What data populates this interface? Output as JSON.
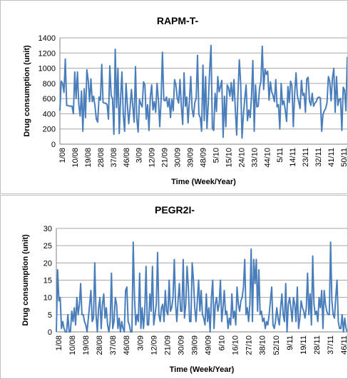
{
  "chart_data": [
    {
      "type": "line",
      "title": "RAPM-T-",
      "xlabel": "Time (Week/Year)",
      "ylabel": "Drug consumption (unit)",
      "ylim": [
        0,
        1400
      ],
      "yticks": [
        0,
        200,
        400,
        600,
        800,
        1000,
        1200,
        1400
      ],
      "grid": true,
      "line_color": "#4a7ebb",
      "x_tick_labels": [
        "1/08",
        "10/08",
        "19/08",
        "28/08",
        "37/08",
        "46/08",
        "3/09",
        "12/09",
        "21/09",
        "30/09",
        "39/09",
        "48/09",
        "5/10",
        "15/10",
        "24/10",
        "33/10",
        "44/10",
        "5/11",
        "14/11",
        "23/11",
        "32/11",
        "41/11",
        "50/11"
      ],
      "series": [
        {
          "values": [
            440,
            830,
            800,
            680,
            1120,
            510,
            510,
            500,
            500,
            500,
            400,
            950,
            600,
            950,
            520,
            370,
            700,
            170,
            730,
            350,
            980,
            840,
            560,
            860,
            560,
            630,
            500,
            330,
            290,
            620,
            580,
            1050,
            550,
            540,
            540,
            520,
            330,
            1030,
            640,
            600,
            130,
            1250,
            480,
            1000,
            140,
            600,
            950,
            380,
            170,
            800,
            520,
            270,
            480,
            720,
            500,
            290,
            1020,
            340,
            160,
            590,
            530,
            490,
            820,
            780,
            330,
            520,
            180,
            620,
            780,
            450,
            560,
            420,
            800,
            590,
            230,
            580,
            1210,
            580,
            570,
            620,
            490,
            600,
            350,
            590,
            440,
            850,
            780,
            600,
            540,
            850,
            500,
            260,
            940,
            500,
            620,
            280,
            570,
            890,
            460,
            360,
            550,
            600,
            1170,
            390,
            350,
            170,
            1040,
            310,
            890,
            210,
            540,
            970,
            1300,
            210,
            180,
            670,
            430,
            890,
            690,
            760,
            840,
            90,
            630,
            230,
            780,
            740,
            630,
            810,
            570,
            850,
            460,
            120,
            670,
            1110,
            800,
            80,
            390,
            590,
            780,
            310,
            450,
            350,
            630,
            1100,
            170,
            780,
            490,
            500,
            740,
            830,
            1290,
            720,
            990,
            920,
            960,
            580,
            820,
            690,
            640,
            560,
            850,
            490,
            520,
            200,
            800,
            520,
            570,
            450,
            300,
            760,
            550,
            830,
            770,
            230,
            660,
            940,
            640,
            560,
            470,
            840,
            640,
            670,
            420,
            860,
            880,
            570,
            510,
            670,
            500,
            540,
            560,
            610,
            620,
            610,
            170,
            390,
            440,
            470,
            550,
            890,
            830,
            570,
            870,
            1000,
            420,
            890,
            510,
            590,
            600,
            180,
            750,
            710,
            440,
            1150
          ]
        }
      ]
    },
    {
      "type": "line",
      "title": "PEGR2I-",
      "xlabel": "Time (Week/Year)",
      "ylabel": "Drug consumption (unit)",
      "ylim": [
        0,
        30
      ],
      "yticks": [
        0,
        5,
        10,
        15,
        20,
        25,
        30
      ],
      "grid": true,
      "line_color": "#4a7ebb",
      "x_tick_labels": [
        "1/08",
        "10/08",
        "19/08",
        "28/08",
        "37/08",
        "46/08",
        "3/09",
        "12/09",
        "21/09",
        "30/09",
        "39/09",
        "49/09",
        "6/10",
        "16/10",
        "27/10",
        "38/10",
        "52/10",
        "9/11",
        "19/11",
        "28/11",
        "37/11",
        "46/11"
      ],
      "series": [
        {
          "values": [
            0,
            18,
            9,
            10,
            1,
            3,
            1,
            0,
            0,
            5,
            0,
            0,
            6,
            3,
            7,
            2,
            10,
            5,
            8,
            14,
            5,
            5,
            3,
            2,
            0,
            4,
            8,
            12,
            3,
            4,
            20,
            5,
            0,
            7,
            10,
            1,
            8,
            11,
            4,
            7,
            2,
            0,
            3,
            17,
            1,
            3,
            10,
            8,
            1,
            4,
            0,
            3,
            1,
            0,
            12,
            13,
            3,
            2,
            0,
            0,
            26,
            10,
            2,
            5,
            3,
            17,
            1,
            7,
            1,
            6,
            19,
            2,
            2,
            11,
            6,
            19,
            2,
            5,
            8,
            23,
            5,
            3,
            7,
            8,
            3,
            12,
            6,
            5,
            15,
            6,
            7,
            10,
            21,
            8,
            3,
            9,
            14,
            6,
            6,
            21,
            4,
            8,
            19,
            13,
            3,
            3,
            20,
            15,
            7,
            3,
            9,
            15,
            6,
            12,
            5,
            4,
            2,
            11,
            3,
            7,
            0,
            10,
            15,
            1,
            8,
            10,
            6,
            8,
            15,
            3,
            7,
            12,
            5,
            6,
            1,
            4,
            2,
            11,
            4,
            6,
            2,
            13,
            8,
            6,
            9,
            10,
            13,
            21,
            5,
            7,
            3,
            8,
            24,
            3,
            21,
            14,
            21,
            6,
            18,
            5,
            6,
            3,
            4,
            1,
            3,
            2,
            5,
            9,
            13,
            2,
            1,
            3,
            7,
            4,
            2,
            7,
            11,
            5,
            3,
            14,
            0,
            8,
            10,
            7,
            3,
            10,
            8,
            3,
            13,
            1,
            4,
            9,
            7,
            6,
            4,
            7,
            17,
            5,
            11,
            2,
            22,
            8,
            5,
            6,
            3,
            10,
            7,
            12,
            1,
            12,
            8,
            6,
            5,
            5,
            26,
            9,
            5,
            4,
            10,
            15,
            3,
            1,
            1,
            5,
            0,
            4,
            1,
            0
          ]
        }
      ]
    }
  ]
}
